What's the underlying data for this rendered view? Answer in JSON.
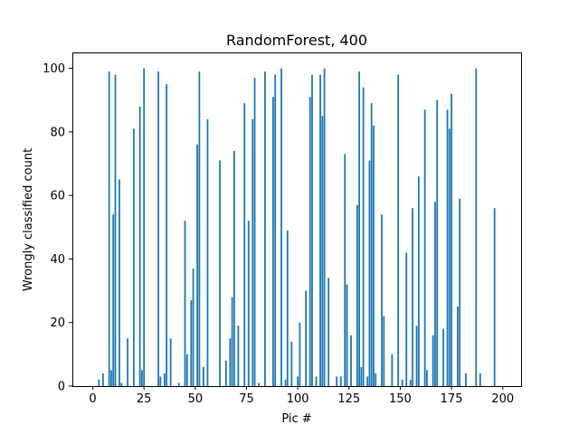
{
  "chart_data": {
    "type": "bar",
    "title": "RandomForest, 400",
    "xlabel": "Pic #",
    "ylabel": "Wrongly classified count",
    "xlim": [
      -9.95,
      208.95
    ],
    "ylim": [
      0,
      105
    ],
    "xticks": [
      0,
      25,
      50,
      75,
      100,
      125,
      150,
      175,
      200
    ],
    "yticks": [
      0,
      20,
      40,
      60,
      80,
      100
    ],
    "bar_color": "#1f77b4",
    "bars": [
      {
        "x": 3,
        "value": 2
      },
      {
        "x": 5,
        "value": 4
      },
      {
        "x": 8,
        "value": 99
      },
      {
        "x": 9,
        "value": 5
      },
      {
        "x": 10,
        "value": 54
      },
      {
        "x": 11,
        "value": 98
      },
      {
        "x": 13,
        "value": 65
      },
      {
        "x": 14,
        "value": 1
      },
      {
        "x": 17,
        "value": 15
      },
      {
        "x": 20,
        "value": 81
      },
      {
        "x": 23,
        "value": 88
      },
      {
        "x": 24,
        "value": 5
      },
      {
        "x": 25,
        "value": 100
      },
      {
        "x": 32,
        "value": 99
      },
      {
        "x": 33,
        "value": 3
      },
      {
        "x": 35,
        "value": 4
      },
      {
        "x": 36,
        "value": 95
      },
      {
        "x": 38,
        "value": 15
      },
      {
        "x": 42,
        "value": 1
      },
      {
        "x": 45,
        "value": 52
      },
      {
        "x": 46,
        "value": 10
      },
      {
        "x": 48,
        "value": 27
      },
      {
        "x": 49,
        "value": 37
      },
      {
        "x": 51,
        "value": 76
      },
      {
        "x": 52,
        "value": 99
      },
      {
        "x": 54,
        "value": 6
      },
      {
        "x": 56,
        "value": 84
      },
      {
        "x": 62,
        "value": 71
      },
      {
        "x": 65,
        "value": 8
      },
      {
        "x": 67,
        "value": 15
      },
      {
        "x": 68,
        "value": 28
      },
      {
        "x": 69,
        "value": 74
      },
      {
        "x": 71,
        "value": 19
      },
      {
        "x": 74,
        "value": 89
      },
      {
        "x": 76,
        "value": 52
      },
      {
        "x": 78,
        "value": 84
      },
      {
        "x": 79,
        "value": 97
      },
      {
        "x": 81,
        "value": 1
      },
      {
        "x": 84,
        "value": 99
      },
      {
        "x": 88,
        "value": 91
      },
      {
        "x": 89,
        "value": 98
      },
      {
        "x": 92,
        "value": 100
      },
      {
        "x": 94,
        "value": 2
      },
      {
        "x": 95,
        "value": 49
      },
      {
        "x": 97,
        "value": 14
      },
      {
        "x": 100,
        "value": 3
      },
      {
        "x": 101,
        "value": 20
      },
      {
        "x": 104,
        "value": 30
      },
      {
        "x": 106,
        "value": 91
      },
      {
        "x": 107,
        "value": 98
      },
      {
        "x": 109,
        "value": 3
      },
      {
        "x": 111,
        "value": 98
      },
      {
        "x": 112,
        "value": 85
      },
      {
        "x": 113,
        "value": 100
      },
      {
        "x": 115,
        "value": 34
      },
      {
        "x": 119,
        "value": 3
      },
      {
        "x": 121,
        "value": 3
      },
      {
        "x": 123,
        "value": 73
      },
      {
        "x": 124,
        "value": 32
      },
      {
        "x": 126,
        "value": 16
      },
      {
        "x": 129,
        "value": 57
      },
      {
        "x": 130,
        "value": 99
      },
      {
        "x": 131,
        "value": 6
      },
      {
        "x": 132,
        "value": 94
      },
      {
        "x": 134,
        "value": 3
      },
      {
        "x": 135,
        "value": 71
      },
      {
        "x": 136,
        "value": 89
      },
      {
        "x": 137,
        "value": 82
      },
      {
        "x": 138,
        "value": 4
      },
      {
        "x": 141,
        "value": 54
      },
      {
        "x": 142,
        "value": 22
      },
      {
        "x": 146,
        "value": 10
      },
      {
        "x": 149,
        "value": 98
      },
      {
        "x": 151,
        "value": 2
      },
      {
        "x": 153,
        "value": 42
      },
      {
        "x": 155,
        "value": 2
      },
      {
        "x": 156,
        "value": 56
      },
      {
        "x": 158,
        "value": 19
      },
      {
        "x": 159,
        "value": 66
      },
      {
        "x": 162,
        "value": 87
      },
      {
        "x": 163,
        "value": 5
      },
      {
        "x": 166,
        "value": 16
      },
      {
        "x": 167,
        "value": 58
      },
      {
        "x": 168,
        "value": 90
      },
      {
        "x": 171,
        "value": 18
      },
      {
        "x": 173,
        "value": 87
      },
      {
        "x": 174,
        "value": 81
      },
      {
        "x": 175,
        "value": 92
      },
      {
        "x": 178,
        "value": 25
      },
      {
        "x": 179,
        "value": 59
      },
      {
        "x": 182,
        "value": 4
      },
      {
        "x": 187,
        "value": 100
      },
      {
        "x": 189,
        "value": 4
      },
      {
        "x": 196,
        "value": 56
      }
    ]
  }
}
